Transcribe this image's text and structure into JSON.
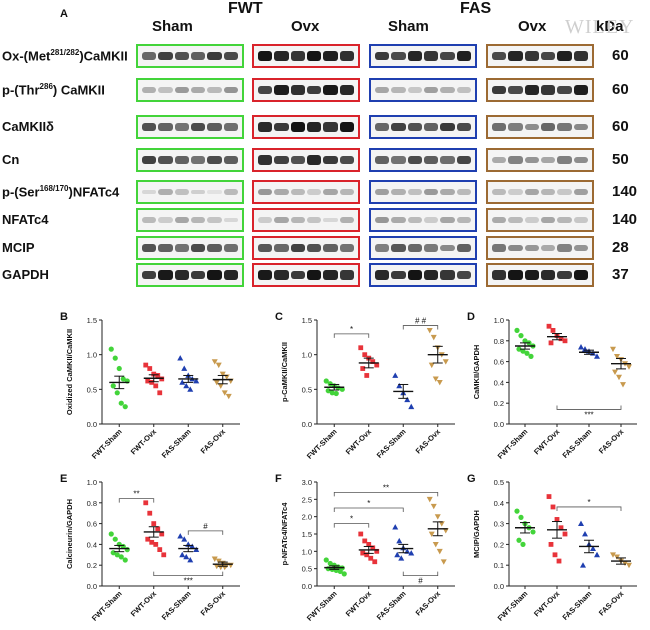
{
  "figure": {
    "panel_a": "A",
    "groups": [
      {
        "label": "FWT"
      },
      {
        "label": "FAS"
      }
    ],
    "subgroups": [
      {
        "label": "Sham"
      },
      {
        "label": "Ovx"
      },
      {
        "label": "Sham"
      },
      {
        "label": "Ovx"
      }
    ],
    "kda_header": "kDa",
    "watermark": "WILEY",
    "box_colors": [
      "#43d43a",
      "#d9232b",
      "#1f3fb0",
      "#9c6a33"
    ],
    "rows": [
      {
        "label_pre": "Ox-(Met",
        "label_sup": "281/282",
        "label_post": ")CaMKII",
        "kda": "60",
        "intensity": [
          0.75,
          0.95,
          0.85,
          0.85
        ]
      },
      {
        "label_pre": "p-(Thr",
        "label_sup": "286",
        "label_post": ") CaMKII",
        "kda": "60",
        "intensity": [
          0.35,
          0.9,
          0.3,
          0.85
        ]
      },
      {
        "label_pre": "CaMKIIδ",
        "label_sup": "",
        "label_post": "",
        "kda": "60",
        "intensity": [
          0.7,
          0.95,
          0.75,
          0.55
        ]
      },
      {
        "label_pre": "Cn",
        "label_sup": "",
        "label_post": "",
        "kda": "50",
        "intensity": [
          0.7,
          0.85,
          0.7,
          0.45
        ]
      },
      {
        "label_pre": "p-(Ser",
        "label_sup": "168/170",
        "label_post": ")NFATc4",
        "kda": "140",
        "intensity": [
          0.2,
          0.3,
          0.35,
          0.3
        ]
      },
      {
        "label_pre": "NFATc4",
        "label_sup": "",
        "label_post": "",
        "kda": "140",
        "intensity": [
          0.25,
          0.25,
          0.3,
          0.3
        ]
      },
      {
        "label_pre": "MCIP",
        "label_sup": "",
        "label_post": "",
        "kda": "28",
        "intensity": [
          0.65,
          0.7,
          0.6,
          0.45
        ]
      },
      {
        "label_pre": "GAPDH",
        "label_sup": "",
        "label_post": "",
        "kda": "37",
        "intensity": [
          0.9,
          0.9,
          0.9,
          0.95
        ]
      }
    ]
  },
  "chart_data": [
    {
      "type": "scatter",
      "panel": "B",
      "ylabel": "Oxidized CaMKII/CaMKII",
      "ylim": [
        0,
        1.5
      ],
      "yticks": [
        "0.0",
        "0.5",
        "1.0",
        "1.5"
      ],
      "categories": [
        "FWT-Sham",
        "FWT-Ovx",
        "FAS-Sham",
        "FAS-Ovx"
      ],
      "means": [
        0.6,
        0.66,
        0.65,
        0.64
      ],
      "sems": [
        0.09,
        0.05,
        0.05,
        0.06
      ],
      "points": [
        [
          1.08,
          0.95,
          0.8,
          0.65,
          0.62,
          0.55,
          0.45,
          0.3,
          0.25
        ],
        [
          0.85,
          0.8,
          0.72,
          0.7,
          0.65,
          0.62,
          0.6,
          0.55,
          0.45
        ],
        [
          0.95,
          0.8,
          0.7,
          0.65,
          0.62,
          0.6,
          0.55,
          0.5
        ],
        [
          0.9,
          0.85,
          0.72,
          0.68,
          0.62,
          0.6,
          0.55,
          0.45,
          0.4
        ]
      ],
      "annotations": []
    },
    {
      "type": "scatter",
      "panel": "C",
      "ylabel": "p-CaMKII/CaMKII",
      "ylim": [
        0,
        1.5
      ],
      "yticks": [
        "0.0",
        "0.5",
        "1.0",
        "1.5"
      ],
      "categories": [
        "FWT-Sham",
        "FWT-Ovx",
        "FAS-Sham",
        "FAS-Ovx"
      ],
      "means": [
        0.53,
        0.88,
        0.47,
        1.0
      ],
      "sems": [
        0.04,
        0.07,
        0.1,
        0.12
      ],
      "points": [
        [
          0.62,
          0.58,
          0.55,
          0.52,
          0.5,
          0.48,
          0.45,
          0.44
        ],
        [
          1.1,
          1.0,
          0.95,
          0.9,
          0.85,
          0.8,
          0.7
        ],
        [
          0.7,
          0.55,
          0.45,
          0.35,
          0.25
        ],
        [
          1.35,
          1.25,
          1.1,
          1.0,
          0.9,
          0.85,
          0.65,
          0.6
        ]
      ],
      "annotations": [
        {
          "label": "*",
          "from": 0,
          "to": 1,
          "y": 1.3
        },
        {
          "label": "# #",
          "from": 2,
          "to": 3,
          "y": 1.42
        }
      ]
    },
    {
      "type": "scatter",
      "panel": "D",
      "ylabel": "CaMKII/GAPDH",
      "ylim": [
        0,
        1.0
      ],
      "yticks": [
        "0.0",
        "0.2",
        "0.4",
        "0.6",
        "0.8",
        "1.0"
      ],
      "categories": [
        "FWT-Sham",
        "FWT-Ovx",
        "FAS-Sham",
        "FAS-Ovx"
      ],
      "means": [
        0.75,
        0.84,
        0.69,
        0.58
      ],
      "sems": [
        0.03,
        0.03,
        0.02,
        0.05
      ],
      "points": [
        [
          0.9,
          0.85,
          0.8,
          0.78,
          0.75,
          0.72,
          0.7,
          0.68,
          0.65
        ],
        [
          0.94,
          0.9,
          0.85,
          0.82,
          0.8,
          0.78
        ],
        [
          0.74,
          0.72,
          0.7,
          0.68,
          0.65
        ],
        [
          0.72,
          0.65,
          0.62,
          0.58,
          0.55,
          0.5,
          0.45,
          0.38
        ]
      ],
      "annotations": [
        {
          "label": "***",
          "from": 1,
          "to": 3,
          "y": 0.14,
          "down": true
        }
      ]
    },
    {
      "type": "scatter",
      "panel": "E",
      "ylabel": "Calcineurin/GAPDH",
      "ylim": [
        0,
        1.0
      ],
      "yticks": [
        "0.0",
        "0.2",
        "0.4",
        "0.6",
        "0.8",
        "1.0"
      ],
      "categories": [
        "FWT-Sham",
        "FWT-Ovx",
        "FAS-Sham",
        "FAS-Ovx"
      ],
      "means": [
        0.36,
        0.52,
        0.36,
        0.21
      ],
      "sems": [
        0.03,
        0.05,
        0.03,
        0.02
      ],
      "points": [
        [
          0.5,
          0.45,
          0.4,
          0.38,
          0.35,
          0.32,
          0.3,
          0.28,
          0.25
        ],
        [
          0.8,
          0.7,
          0.6,
          0.55,
          0.5,
          0.45,
          0.42,
          0.4,
          0.35,
          0.3
        ],
        [
          0.48,
          0.45,
          0.4,
          0.38,
          0.35,
          0.3,
          0.28,
          0.25
        ],
        [
          0.26,
          0.24,
          0.22,
          0.2,
          0.2,
          0.19,
          0.18,
          0.18
        ]
      ],
      "annotations": [
        {
          "label": "**",
          "from": 0,
          "to": 1,
          "y": 0.84
        },
        {
          "label": "#",
          "from": 2,
          "to": 3,
          "y": 0.53
        },
        {
          "label": "***",
          "from": 1,
          "to": 3,
          "y": 0.1,
          "down": true
        }
      ]
    },
    {
      "type": "scatter",
      "panel": "F",
      "ylabel": "p-NFATc4/NFATc4",
      "ylim": [
        0,
        3.0
      ],
      "yticks": [
        "0.0",
        "0.5",
        "1.0",
        "1.5",
        "2.0",
        "2.5",
        "3.0"
      ],
      "categories": [
        "FWT-Sham",
        "FWT-Ovx",
        "FAS-Sham",
        "FAS-Ovx"
      ],
      "means": [
        0.53,
        1.04,
        1.08,
        1.65
      ],
      "sems": [
        0.05,
        0.1,
        0.12,
        0.2
      ],
      "points": [
        [
          0.75,
          0.65,
          0.6,
          0.55,
          0.52,
          0.5,
          0.48,
          0.45,
          0.42,
          0.35
        ],
        [
          1.5,
          1.3,
          1.2,
          1.1,
          1.0,
          0.95,
          0.9,
          0.8,
          0.7
        ],
        [
          1.7,
          1.3,
          1.1,
          1.0,
          0.95,
          0.9,
          0.8
        ],
        [
          2.5,
          2.3,
          2.0,
          1.8,
          1.6,
          1.5,
          1.2,
          1.0,
          0.7
        ]
      ],
      "annotations": [
        {
          "label": "*",
          "from": 0,
          "to": 1,
          "y": 1.8
        },
        {
          "label": "*",
          "from": 0,
          "to": 2,
          "y": 2.25
        },
        {
          "label": "**",
          "from": 0,
          "to": 3,
          "y": 2.7
        },
        {
          "label": "#",
          "from": 2,
          "to": 3,
          "y": 0.3,
          "down": true
        }
      ]
    },
    {
      "type": "scatter",
      "panel": "G",
      "ylabel": "MCIP/GAPDH",
      "ylim": [
        0,
        0.5
      ],
      "yticks": [
        "0.0",
        "0.1",
        "0.2",
        "0.3",
        "0.4",
        "0.5"
      ],
      "categories": [
        "FWT-Sham",
        "FWT-Ovx",
        "FAS-Sham",
        "FAS-Ovx"
      ],
      "means": [
        0.28,
        0.27,
        0.19,
        0.12
      ],
      "sems": [
        0.025,
        0.04,
        0.03,
        0.015
      ],
      "points": [
        [
          0.36,
          0.33,
          0.3,
          0.28,
          0.26,
          0.22,
          0.2
        ],
        [
          0.43,
          0.38,
          0.32,
          0.28,
          0.25,
          0.2,
          0.15,
          0.12
        ],
        [
          0.3,
          0.25,
          0.2,
          0.18,
          0.15,
          0.1
        ],
        [
          0.15,
          0.14,
          0.12,
          0.11,
          0.1
        ]
      ],
      "annotations": [
        {
          "label": "*",
          "from": 1,
          "to": 3,
          "y": 0.38
        }
      ]
    }
  ]
}
